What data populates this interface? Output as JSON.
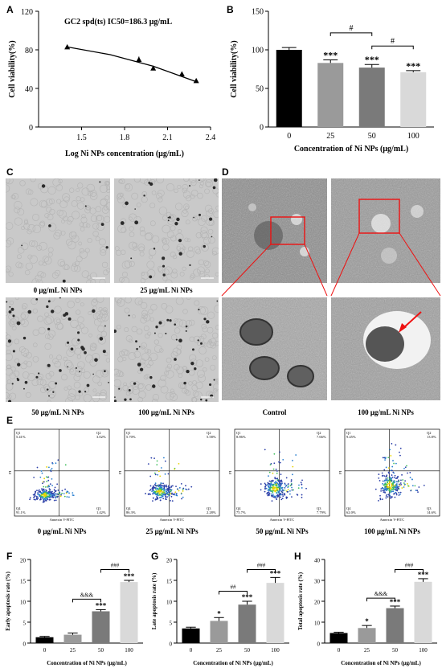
{
  "panels": {
    "A": "A",
    "B": "B",
    "C": "C",
    "D": "D",
    "E": "E",
    "F": "F",
    "G": "G",
    "H": "H"
  },
  "figure_C": {
    "captions": [
      "0 μg/mL Ni NPs",
      "25 μg/mL Ni NPs",
      "50 μg/mL Ni NPs",
      "100 μg/mL Ni NPs"
    ]
  },
  "figure_D": {
    "captions": [
      "Control",
      "100 μg/mL Ni NPs"
    ]
  },
  "figure_E": {
    "xaxis_label": "Annexin V-FITC",
    "yaxis_label": "PI",
    "captions": [
      "0 μg/mL Ni NPs",
      "25 μg/mL Ni NPs",
      "50 μg/mL Ni NPs",
      "100 μg/mL Ni NPs"
    ],
    "plots": [
      {
        "q1": "Q1",
        "q1v": "5.41%",
        "q2": "Q2",
        "q2v": "3.02%",
        "q3": "Q3",
        "q3v": "1.42%",
        "q4": "Q4",
        "q4v": "91.1%"
      },
      {
        "q1": "Q1",
        "q1v": "5.70%",
        "q2": "Q2",
        "q2v": "5.58%",
        "q3": "Q3",
        "q3v": "2.28%",
        "q4": "Q4",
        "q4v": "86.3%"
      },
      {
        "q1": "Q1",
        "q1v": "8.86%",
        "q2": "Q2",
        "q2v": "7.66%",
        "q3": "Q3",
        "q3v": "7.79%",
        "q4": "Q4",
        "q4v": "75.7%"
      },
      {
        "q1": "Q1",
        "q1v": "9.45%",
        "q2": "Q2",
        "q2v": "13.8%",
        "q3": "Q3",
        "q3v": "14.6%",
        "q4": "Q4",
        "q4v": "62.0%"
      }
    ]
  },
  "chart_data": [
    {
      "id": "A",
      "type": "scatter",
      "title": "GC2 spd(ts) IC50=186.3 μg/mL",
      "xlabel": "Log Ni NPs concentration (μg/mL)",
      "ylabel": "Cell viability(%)",
      "xlim": [
        1.2,
        2.4
      ],
      "ylim": [
        0,
        120
      ],
      "xticks": [
        1.5,
        1.8,
        2.1,
        2.4
      ],
      "xtick_labels": [
        "1.5",
        "1.8",
        "2.1",
        "2.4"
      ],
      "yticks": [
        0,
        40,
        80,
        120
      ],
      "ytick_labels": [
        "0",
        "40",
        "80",
        "120"
      ],
      "x": [
        1.4,
        1.9,
        2.0,
        2.2,
        2.3
      ],
      "y": [
        83,
        70,
        61,
        55,
        48
      ],
      "err": [
        1,
        3,
        2,
        1.5,
        1
      ],
      "fit_x": [
        1.4,
        1.7,
        2.0,
        2.3
      ],
      "fit_y": [
        83,
        75,
        63,
        47
      ]
    },
    {
      "id": "B",
      "type": "bar",
      "xlabel": "Concentration of Ni NPs (μg/mL)",
      "ylabel": "Cell viability(%)",
      "categories": [
        "0",
        "25",
        "50",
        "100"
      ],
      "values": [
        100,
        83,
        77,
        71
      ],
      "errors": [
        3,
        4,
        4,
        2
      ],
      "colors": [
        "#000000",
        "#9a9a9a",
        "#7a7a7a",
        "#d9d9d9"
      ],
      "ylim": [
        0,
        150
      ],
      "yticks": [
        0,
        50,
        100,
        150
      ],
      "ytick_labels": [
        "0",
        "50",
        "100",
        "150"
      ],
      "stars": [
        "",
        "***",
        "***",
        "***"
      ],
      "brackets": [
        {
          "from": 1,
          "to": 2,
          "y": 122,
          "label": "#"
        },
        {
          "from": 2,
          "to": 3,
          "y": 105,
          "label": "#"
        }
      ]
    },
    {
      "id": "F",
      "type": "bar",
      "xlabel": "Concentration of Ni NPs (μg/mL)",
      "ylabel": "Early apoptosis rate (%)",
      "categories": [
        "0",
        "25",
        "50",
        "100"
      ],
      "values": [
        1.4,
        2.0,
        7.6,
        14.6
      ],
      "errors": [
        0.2,
        0.4,
        0.4,
        0.4
      ],
      "colors": [
        "#000000",
        "#9a9a9a",
        "#7a7a7a",
        "#d9d9d9"
      ],
      "ylim": [
        0,
        20
      ],
      "yticks": [
        0,
        5,
        10,
        15,
        20
      ],
      "ytick_labels": [
        "0",
        "5",
        "10",
        "15",
        "20"
      ],
      "stars": [
        "",
        "",
        "***",
        "***"
      ],
      "brackets": [
        {
          "from": 1,
          "to": 2,
          "y": 10.5,
          "label": "&&&"
        },
        {
          "from": 2,
          "to": 3,
          "y": 17.6,
          "label": "###"
        }
      ]
    },
    {
      "id": "G",
      "type": "bar",
      "xlabel": "Concentration of Ni NPs (μg/mL)",
      "ylabel": "Late apoptosis rate (%)",
      "categories": [
        "0",
        "25",
        "50",
        "100"
      ],
      "values": [
        3.5,
        5.3,
        9.2,
        14.4
      ],
      "errors": [
        0.3,
        0.8,
        0.8,
        1.3
      ],
      "colors": [
        "#000000",
        "#9a9a9a",
        "#7a7a7a",
        "#d9d9d9"
      ],
      "ylim": [
        0,
        20
      ],
      "yticks": [
        0,
        5,
        10,
        15,
        20
      ],
      "ytick_labels": [
        "0",
        "5",
        "10",
        "15",
        "20"
      ],
      "stars": [
        "",
        "*",
        "***",
        "***"
      ],
      "brackets": [
        {
          "from": 1,
          "to": 2,
          "y": 12.4,
          "label": "##"
        },
        {
          "from": 2,
          "to": 3,
          "y": 17.6,
          "label": "###"
        }
      ]
    },
    {
      "id": "H",
      "type": "bar",
      "xlabel": "Concentration of Ni NPs (μg/mL)",
      "ylabel": "Total apoptosis rate (%)",
      "categories": [
        "0",
        "25",
        "50",
        "100"
      ],
      "values": [
        4.8,
        7.2,
        16.7,
        29.3
      ],
      "errors": [
        0.4,
        1.2,
        1.0,
        1.5
      ],
      "colors": [
        "#000000",
        "#9a9a9a",
        "#7a7a7a",
        "#d9d9d9"
      ],
      "ylim": [
        0,
        40
      ],
      "yticks": [
        0,
        10,
        20,
        30,
        40
      ],
      "ytick_labels": [
        "0",
        "10",
        "20",
        "30",
        "40"
      ],
      "stars": [
        "",
        "*",
        "***",
        "***"
      ],
      "brackets": [
        {
          "from": 1,
          "to": 2,
          "y": 21.5,
          "label": "&&&"
        },
        {
          "from": 2,
          "to": 3,
          "y": 35.2,
          "label": "###"
        }
      ]
    }
  ]
}
